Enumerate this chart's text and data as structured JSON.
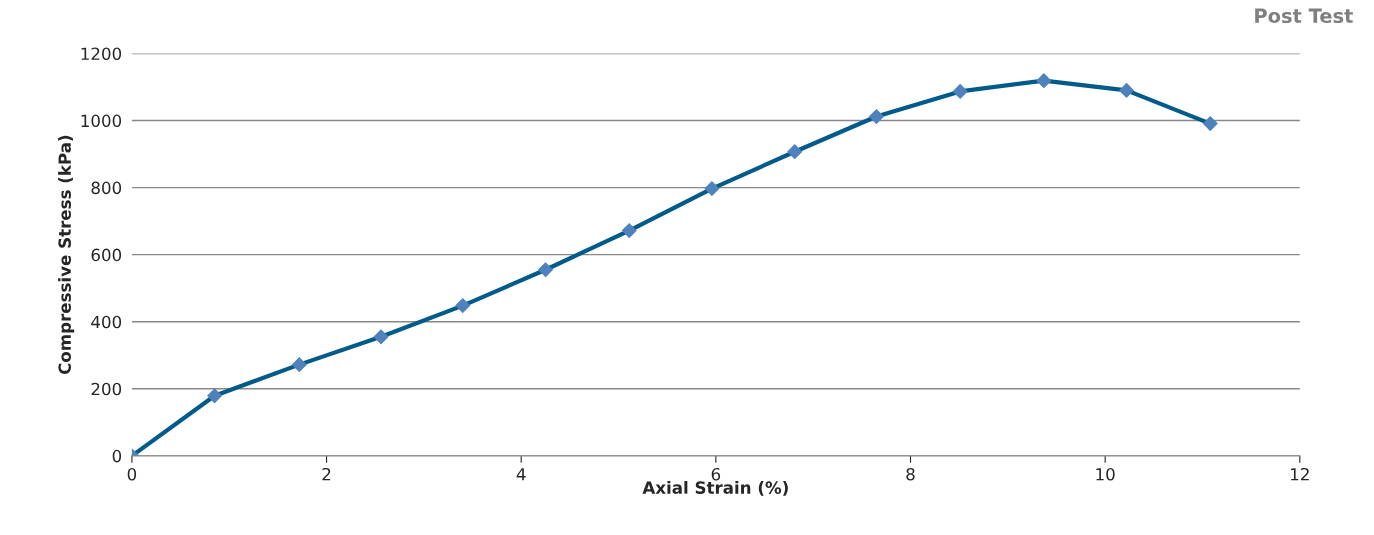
{
  "chart_data": {
    "type": "line",
    "xlabel": "Axial Strain (%)",
    "ylabel": "Compressive Stress (kPa)",
    "annotations": [
      "Post Test"
    ],
    "x": [
      0,
      0.85,
      1.72,
      2.56,
      3.4,
      4.25,
      5.11,
      5.96,
      6.81,
      7.65,
      8.51,
      9.37,
      10.22,
      11.08
    ],
    "series": [
      {
        "color": "#005b8a",
        "values": [
          0,
          179,
          272,
          355,
          448,
          555,
          672,
          797,
          907,
          1012,
          1087,
          1119,
          1090,
          991
        ]
      }
    ],
    "xlim": [
      0,
      12
    ],
    "xticks": [
      0,
      2,
      4,
      6,
      8,
      10,
      12
    ],
    "ylim": [
      0,
      1200
    ],
    "yticks": [
      0,
      200,
      400,
      600,
      800,
      1000,
      1200
    ],
    "grid": "y",
    "legend": false,
    "marker": "diamond",
    "line_style": "solid"
  }
}
